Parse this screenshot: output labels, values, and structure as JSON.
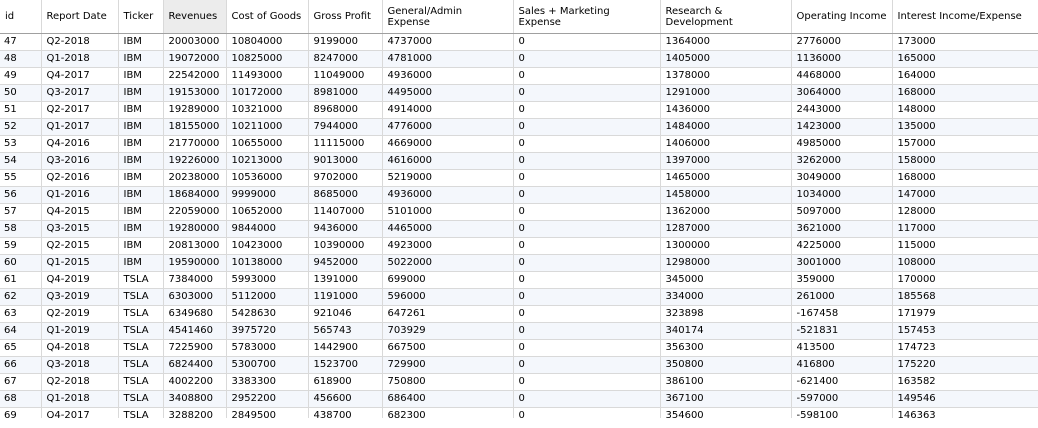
{
  "columns": [
    "id",
    "Report Date",
    "Ticker",
    "Revenues",
    "Cost of Goods",
    "Gross Profit",
    "General/Admin Expense",
    "Sales + Marketing Expense",
    "Research & Development",
    "Operating Income",
    "Interest Income/Expense"
  ],
  "rows": [
    [
      "47",
      "Q2-2018",
      "IBM",
      "20003000",
      "10804000",
      "9199000",
      "4737000",
      "0",
      "1364000",
      "2776000",
      "173000"
    ],
    [
      "48",
      "Q1-2018",
      "IBM",
      "19072000",
      "10825000",
      "8247000",
      "4781000",
      "0",
      "1405000",
      "1136000",
      "165000"
    ],
    [
      "49",
      "Q4-2017",
      "IBM",
      "22542000",
      "11493000",
      "11049000",
      "4936000",
      "0",
      "1378000",
      "4468000",
      "164000"
    ],
    [
      "50",
      "Q3-2017",
      "IBM",
      "19153000",
      "10172000",
      "8981000",
      "4495000",
      "0",
      "1291000",
      "3064000",
      "168000"
    ],
    [
      "51",
      "Q2-2017",
      "IBM",
      "19289000",
      "10321000",
      "8968000",
      "4914000",
      "0",
      "1436000",
      "2443000",
      "148000"
    ],
    [
      "52",
      "Q1-2017",
      "IBM",
      "18155000",
      "10211000",
      "7944000",
      "4776000",
      "0",
      "1484000",
      "1423000",
      "135000"
    ],
    [
      "53",
      "Q4-2016",
      "IBM",
      "21770000",
      "10655000",
      "11115000",
      "4669000",
      "0",
      "1406000",
      "4985000",
      "157000"
    ],
    [
      "54",
      "Q3-2016",
      "IBM",
      "19226000",
      "10213000",
      "9013000",
      "4616000",
      "0",
      "1397000",
      "3262000",
      "158000"
    ],
    [
      "55",
      "Q2-2016",
      "IBM",
      "20238000",
      "10536000",
      "9702000",
      "5219000",
      "0",
      "1465000",
      "3049000",
      "168000"
    ],
    [
      "56",
      "Q1-2016",
      "IBM",
      "18684000",
      "9999000",
      "8685000",
      "4936000",
      "0",
      "1458000",
      "1034000",
      "147000"
    ],
    [
      "57",
      "Q4-2015",
      "IBM",
      "22059000",
      "10652000",
      "11407000",
      "5101000",
      "0",
      "1362000",
      "5097000",
      "128000"
    ],
    [
      "58",
      "Q3-2015",
      "IBM",
      "19280000",
      "9844000",
      "9436000",
      "4465000",
      "0",
      "1287000",
      "3621000",
      "117000"
    ],
    [
      "59",
      "Q2-2015",
      "IBM",
      "20813000",
      "10423000",
      "10390000",
      "4923000",
      "0",
      "1300000",
      "4225000",
      "115000"
    ],
    [
      "60",
      "Q1-2015",
      "IBM",
      "19590000",
      "10138000",
      "9452000",
      "5022000",
      "0",
      "1298000",
      "3001000",
      "108000"
    ],
    [
      "61",
      "Q4-2019",
      "TSLA",
      "7384000",
      "5993000",
      "1391000",
      "699000",
      "0",
      "345000",
      "359000",
      "170000"
    ],
    [
      "62",
      "Q3-2019",
      "TSLA",
      "6303000",
      "5112000",
      "1191000",
      "596000",
      "0",
      "334000",
      "261000",
      "185568"
    ],
    [
      "63",
      "Q2-2019",
      "TSLA",
      "6349680",
      "5428630",
      "921046",
      "647261",
      "0",
      "323898",
      "-167458",
      "171979"
    ],
    [
      "64",
      "Q1-2019",
      "TSLA",
      "4541460",
      "3975720",
      "565743",
      "703929",
      "0",
      "340174",
      "-521831",
      "157453"
    ],
    [
      "65",
      "Q4-2018",
      "TSLA",
      "7225900",
      "5783000",
      "1442900",
      "667500",
      "0",
      "356300",
      "413500",
      "174723"
    ],
    [
      "66",
      "Q3-2018",
      "TSLA",
      "6824400",
      "5300700",
      "1523700",
      "729900",
      "0",
      "350800",
      "416800",
      "175220"
    ],
    [
      "67",
      "Q2-2018",
      "TSLA",
      "4002200",
      "3383300",
      "618900",
      "750800",
      "0",
      "386100",
      "-621400",
      "163582"
    ],
    [
      "68",
      "Q1-2018",
      "TSLA",
      "3408800",
      "2952200",
      "456600",
      "686400",
      "0",
      "367100",
      "-597000",
      "149546"
    ],
    [
      "69",
      "Q4-2017",
      "TSLA",
      "3288200",
      "2849500",
      "438700",
      "682300",
      "0",
      "354600",
      "-598100",
      "146363"
    ]
  ]
}
